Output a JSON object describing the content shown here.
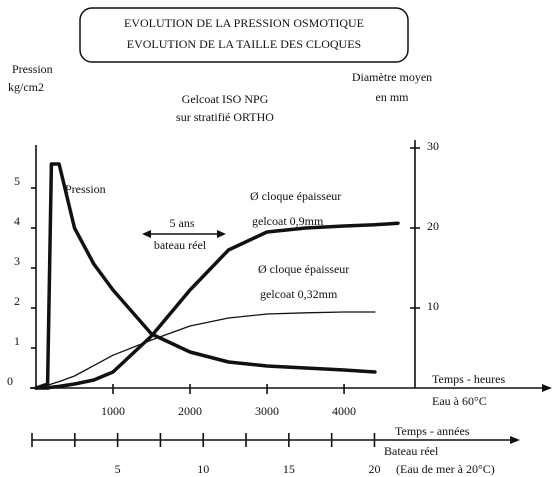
{
  "chart_data": {
    "type": "line",
    "title": [
      "EVOLUTION DE LA PRESSION OSMOTIQUE",
      "EVOLUTION DE LA TAILLE DES CLOQUES"
    ],
    "subtitle": [
      "Gelcoat ISO NPG",
      "sur stratifié ORTHO"
    ],
    "ylabel": [
      "Pression",
      "kg/cm2"
    ],
    "y2label": [
      "Diamètre moyen",
      "en mm"
    ],
    "xlabel": [
      "Temps - heures",
      "Eau à 60°C"
    ],
    "x2label": [
      "Temps - années",
      "Bateau réel",
      "(Eau de mer à 20°C)"
    ],
    "annotation": [
      "5 ans",
      "bateau réel"
    ],
    "x": [
      0,
      150,
      200,
      300,
      500,
      750,
      1000,
      1500,
      2000,
      2500,
      3000,
      3500,
      4000,
      4400,
      4700
    ],
    "xlim": [
      0,
      6700
    ],
    "xticks": [
      1000,
      2000,
      3000,
      4000
    ],
    "x2lim": [
      0,
      28.5
    ],
    "x2ticks": [
      5,
      10,
      15,
      20
    ],
    "x2minor_ticks": [
      0,
      2.5,
      7.5,
      12.5,
      17.5
    ],
    "ylim": [
      0,
      6
    ],
    "yticks": [
      0,
      1,
      2,
      3,
      4,
      5
    ],
    "y2lim": [
      0,
      30
    ],
    "y2ticks": [
      10,
      20,
      30
    ],
    "series": [
      {
        "name": [
          "Pression"
        ],
        "color": "#111",
        "line_width": 3.5,
        "values": [
          0,
          0.1,
          5.6,
          5.6,
          4,
          3.1,
          2.45,
          1.35,
          0.9,
          0.65,
          0.55,
          0.5,
          0.45,
          0.4,
          null
        ]
      },
      {
        "name": [
          "Ø cloque épaisseur",
          "gelcoat 0,9mm"
        ],
        "color": "#111",
        "line_width": 3.5,
        "axis": "y2",
        "values": [
          0,
          0,
          0.1,
          0.2,
          0.5,
          1,
          2,
          6.5,
          12.25,
          17.25,
          19.5,
          20,
          20.25,
          20.4,
          20.6
        ]
      },
      {
        "name": [
          "Ø cloque épaisseur",
          "gelcoat 0,32mm"
        ],
        "color": "#111",
        "line_width": 1.3,
        "axis": "y2",
        "values": [
          0,
          0.3,
          0.5,
          0.8,
          1.5,
          2.8,
          4.1,
          6,
          7.75,
          8.75,
          9.25,
          9.4,
          9.5,
          9.5,
          null
        ]
      }
    ]
  }
}
